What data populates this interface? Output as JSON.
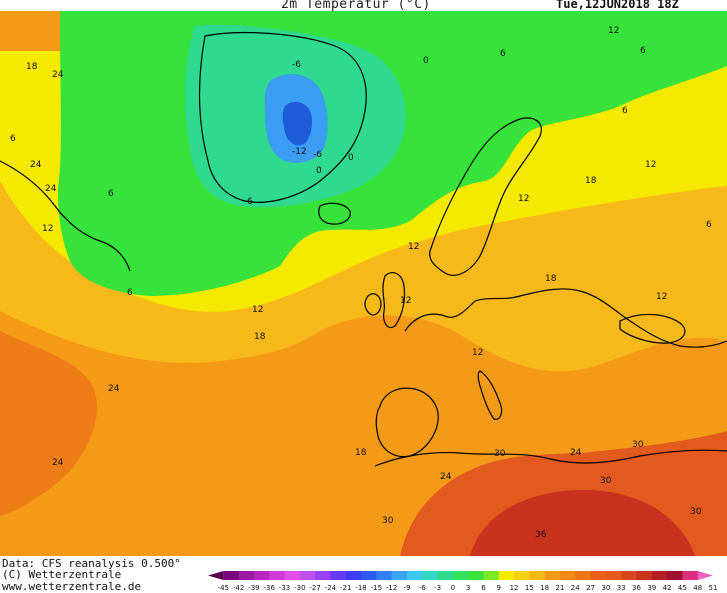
{
  "header": {
    "title": "2m Temperatur (°C)",
    "date": "Tue,12JUN2018 18Z"
  },
  "footer": {
    "data_source": "Data: CFS reanalysis 0.500°",
    "copyright": "(C) Wetterzentrale",
    "website": "www.wetterzentrale.de"
  },
  "colors": {
    "ocean_warm": "#f59a17",
    "ocean_mild": "#f7b81a",
    "yellow": "#f5e900",
    "green": "#37e23a",
    "light_green": "#3fd85a",
    "cyan_green": "#2fd98d",
    "blue": "#3c9df5",
    "deep_blue": "#1d5cd8",
    "hot": "#e25a1e",
    "very_hot": "#c8321e",
    "coastline": "#000000"
  },
  "legend": {
    "ticks": [
      "-45",
      "-42",
      "-39",
      "-36",
      "-33",
      "-30",
      "-27",
      "-24",
      "-21",
      "-18",
      "-15",
      "-12",
      "-9",
      "-6",
      "-3",
      "0",
      "3",
      "6",
      "9",
      "12",
      "15",
      "18",
      "21",
      "24",
      "27",
      "30",
      "33",
      "36",
      "39",
      "42",
      "45",
      "48",
      "51"
    ],
    "colors": [
      "#5a0050",
      "#7a0a7a",
      "#9a1aa0",
      "#b828c0",
      "#d03ad8",
      "#e050e8",
      "#c050f0",
      "#9a40f0",
      "#6a3af0",
      "#3c3cf0",
      "#2a5cf0",
      "#2f80f5",
      "#3ca4f5",
      "#3cc8f0",
      "#32d8c0",
      "#2fd98d",
      "#35e060",
      "#3de23a",
      "#7ae82a",
      "#f5e900",
      "#f7d00e",
      "#f7b81a",
      "#f59a17",
      "#f28a15",
      "#ee7518",
      "#e9601b",
      "#e25a1e",
      "#d8481e",
      "#c8321e",
      "#b41f24",
      "#a01030",
      "#d8307a",
      "#f060c0"
    ]
  },
  "map": {
    "isotherm_labels": [
      {
        "text": "18"
      },
      {
        "text": "24"
      },
      {
        "text": "24"
      },
      {
        "text": "24"
      },
      {
        "text": "12"
      },
      {
        "text": "6"
      },
      {
        "text": "-6"
      },
      {
        "text": "-12"
      },
      {
        "text": "-6"
      },
      {
        "text": "0"
      },
      {
        "text": "0"
      },
      {
        "text": "6"
      },
      {
        "text": "0"
      },
      {
        "text": "12"
      },
      {
        "text": "6"
      },
      {
        "text": "6"
      },
      {
        "text": "12"
      },
      {
        "text": "12"
      },
      {
        "text": "18"
      },
      {
        "text": "12"
      },
      {
        "text": "12"
      },
      {
        "text": "18"
      },
      {
        "text": "6"
      },
      {
        "text": "12"
      },
      {
        "text": "18"
      },
      {
        "text": "24"
      },
      {
        "text": "24"
      },
      {
        "text": "18"
      },
      {
        "text": "24"
      },
      {
        "text": "30"
      },
      {
        "text": "24"
      },
      {
        "text": "30"
      },
      {
        "text": "30"
      },
      {
        "text": "30"
      },
      {
        "text": "30"
      },
      {
        "text": "36"
      },
      {
        "text": "12"
      },
      {
        "text": "6"
      },
      {
        "text": "6"
      },
      {
        "text": "6"
      },
      {
        "text": "12"
      }
    ]
  }
}
